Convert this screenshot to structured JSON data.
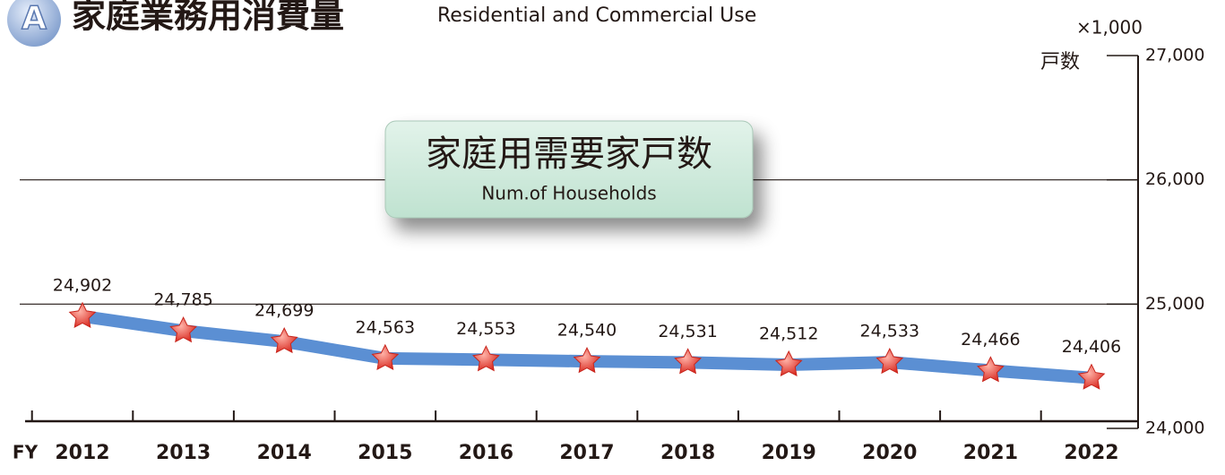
{
  "chart_data": {
    "type": "line",
    "badge": "A",
    "title": "家庭業務用消費量",
    "subtitle": "Residential and Commercial Use",
    "y_unit": "×1,000",
    "y_label": "戸数",
    "x_label": "FY",
    "categories": [
      "2012",
      "2013",
      "2014",
      "2015",
      "2016",
      "2017",
      "2018",
      "2019",
      "2020",
      "2021",
      "2022"
    ],
    "series": [
      {
        "name": "家庭用需要家戸数",
        "name_en": "Num.of Households",
        "color": "#5b8fd3",
        "values": [
          24902,
          24785,
          24699,
          24563,
          24553,
          24540,
          24531,
          24512,
          24533,
          24466,
          24406
        ],
        "value_labels": [
          "24,902",
          "24,785",
          "24,699",
          "24,563",
          "24,553",
          "24,540",
          "24,531",
          "24,512",
          "24,533",
          "24,466",
          "24,406"
        ]
      }
    ],
    "marker_color": "#e8403a",
    "ylim": [
      24000,
      27000
    ],
    "yticks": [
      {
        "value": 24000,
        "label": "24,000"
      },
      {
        "value": 25000,
        "label": "25,000"
      },
      {
        "value": 26000,
        "label": "26,000"
      },
      {
        "value": 27000,
        "label": "27,000"
      }
    ],
    "grid": true
  }
}
